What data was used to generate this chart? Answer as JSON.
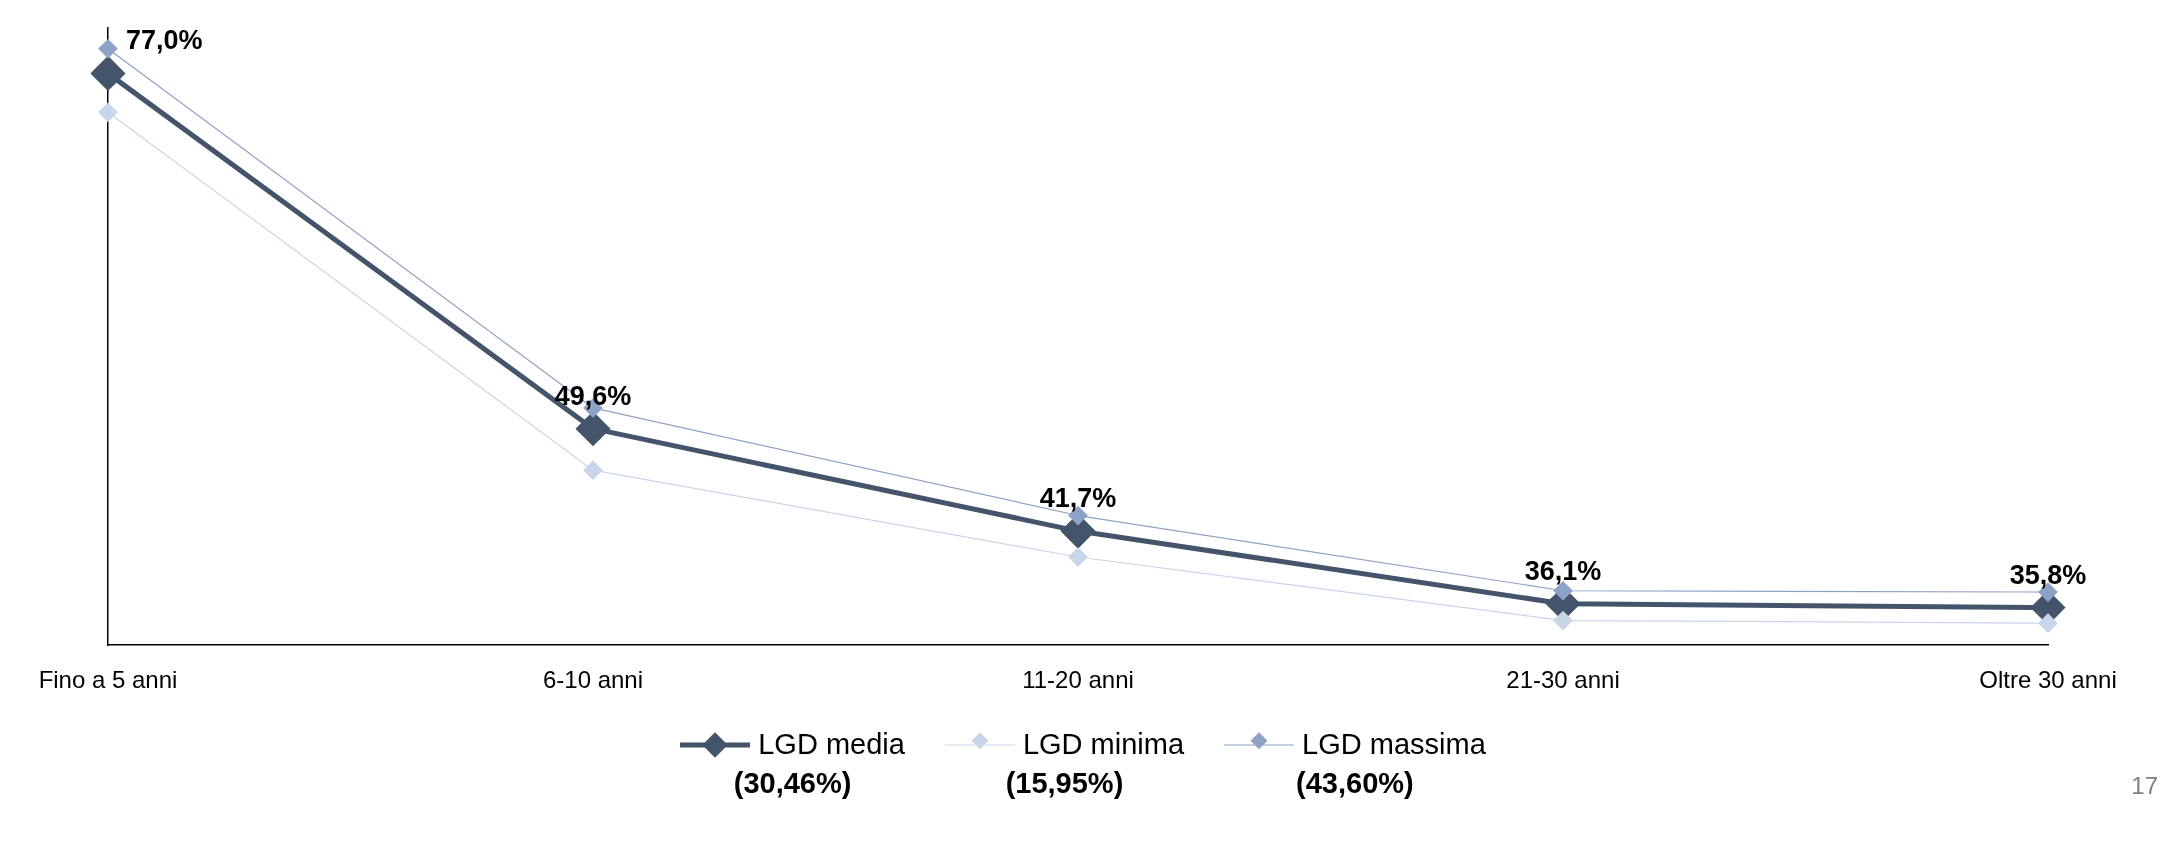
{
  "chart_data": {
    "type": "line",
    "categories": [
      "Fino a 5 anni",
      "6-10 anni",
      "11-20 anni",
      "21-30 anni",
      "Oltre 30 anni"
    ],
    "series": [
      {
        "name": "LGD media\n(30,46%)",
        "color": "#44546a",
        "values": [
          77.0,
          49.6,
          41.7,
          36.1,
          35.8
        ],
        "value_labels": [
          "77,0%",
          "49,6%",
          "41,7%",
          "36,1%",
          "35,8%"
        ]
      },
      {
        "name": "LGD minima\n(15,95%)",
        "color": "#c9d5e8",
        "values": [
          74.0,
          46.4,
          39.7,
          34.8,
          34.6
        ]
      },
      {
        "name": "LGD massima\n(43,60%)",
        "color": "#8ea2c8",
        "values": [
          78.9,
          51.2,
          42.9,
          37.1,
          37.0
        ]
      }
    ],
    "ylim": [
      32.9,
      80.5
    ],
    "tick_labels": "x",
    "grid": false,
    "legend": "bottom",
    "marker": "diamond",
    "line_style": "solid",
    "annotations": [
      "17"
    ]
  }
}
